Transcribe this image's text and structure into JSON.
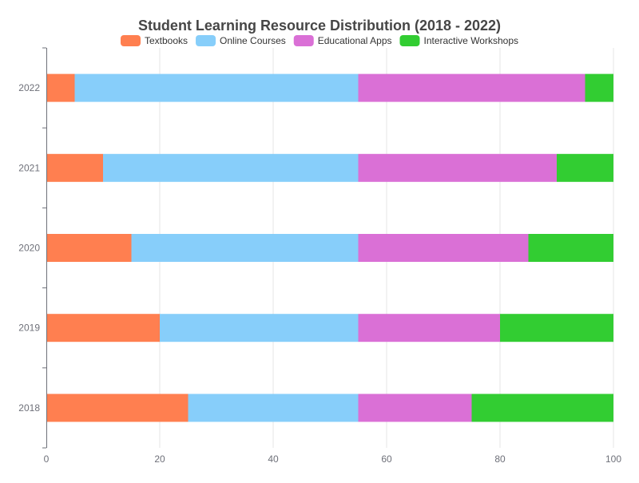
{
  "chart_data": {
    "type": "bar",
    "orientation": "horizontal",
    "stacked": true,
    "title": "Student Learning Resource Distribution (2018 - 2022)",
    "categories": [
      "2018",
      "2019",
      "2020",
      "2021",
      "2022"
    ],
    "series": [
      {
        "name": "Textbooks",
        "color": "#ff7f50",
        "values": [
          25,
          20,
          15,
          10,
          5
        ]
      },
      {
        "name": "Online Courses",
        "color": "#87cefa",
        "values": [
          30,
          35,
          40,
          45,
          50
        ]
      },
      {
        "name": "Educational Apps",
        "color": "#da70d6",
        "values": [
          20,
          25,
          30,
          35,
          40
        ]
      },
      {
        "name": "Interactive Workshops",
        "color": "#32cd32",
        "values": [
          25,
          20,
          15,
          10,
          5
        ]
      }
    ],
    "x_ticks": [
      "0",
      "20",
      "40",
      "60",
      "80",
      "100"
    ],
    "xlim": [
      0,
      100
    ],
    "xlabel": "",
    "ylabel": "",
    "grid": "vertical",
    "legend_position": "top-center"
  }
}
